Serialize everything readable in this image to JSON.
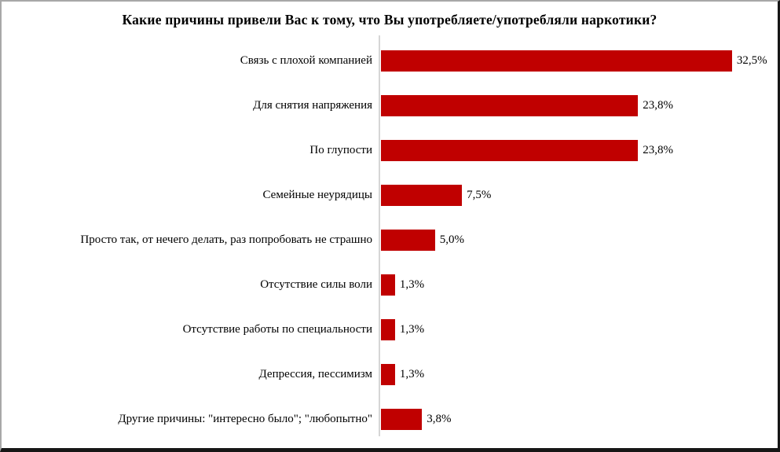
{
  "chart_data": {
    "type": "bar",
    "orientation": "horizontal",
    "title": "Какие причины привели Вас к тому, что Вы употребляете/употребляли наркотики?",
    "categories": [
      "Связь с плохой компанией",
      "Для снятия напряжения",
      "По глупости",
      "Семейные неурядицы",
      "Просто так, от нечего делать, раз попробовать не страшно",
      "Отсутствие силы воли",
      "Отсутствие работы по специальности",
      "Депрессия, пессимизм",
      "Другие причины: \"интересно было\"; \"любопытно\""
    ],
    "values": [
      32.5,
      23.8,
      23.8,
      7.5,
      5.0,
      1.3,
      1.3,
      1.3,
      3.8
    ],
    "value_labels": [
      "32,5%",
      "23,8%",
      "23,8%",
      "7,5%",
      "5,0%",
      "1,3%",
      "1,3%",
      "1,3%",
      "3,8%"
    ],
    "xlim": [
      0,
      35
    ],
    "grid": false,
    "legend": false,
    "bar_color": "#C00000",
    "axis_line_color": "#D6D6D6",
    "text_color": "#000000",
    "background_color": "#FFFFFF"
  }
}
